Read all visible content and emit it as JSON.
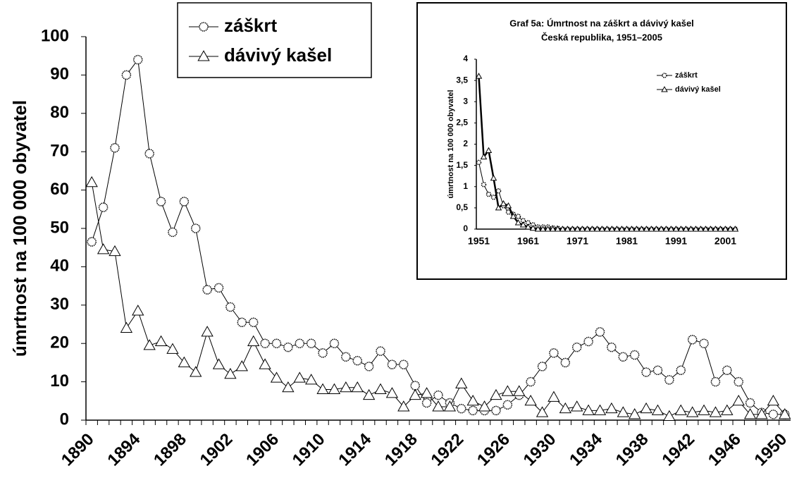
{
  "chart_data": [
    {
      "type": "line",
      "ylabel": "úmrtnost na 100 000 obyvatel",
      "categories": [
        "1890",
        null,
        null,
        null,
        "1894",
        null,
        null,
        null,
        "1898",
        null,
        null,
        null,
        "1902",
        null,
        null,
        null,
        "1906",
        null,
        null,
        null,
        "1910",
        null,
        null,
        null,
        "1914",
        null,
        null,
        null,
        "1918",
        null,
        null,
        null,
        "1922",
        null,
        null,
        null,
        "1926",
        null,
        null,
        null,
        "1930",
        null,
        null,
        null,
        "1934",
        null,
        null,
        null,
        "1938",
        null,
        null,
        null,
        "1942",
        null,
        null,
        null,
        "1946",
        null,
        null,
        null,
        "1950"
      ],
      "series": [
        {
          "name": "záškrt",
          "color": "#000000",
          "marker": "circle",
          "values": [
            46.5,
            55.5,
            71,
            90,
            94,
            69.5,
            57,
            49,
            57,
            50,
            34,
            34.5,
            29.5,
            25.5,
            25.5,
            20,
            20,
            19,
            20,
            20,
            17.5,
            20,
            16.5,
            15.5,
            14,
            18,
            14.5,
            14.5,
            9,
            4.5,
            6.5,
            4.5,
            3,
            2.5,
            2.5,
            2.5,
            4,
            6.5,
            10,
            14,
            17.5,
            15,
            19,
            20.5,
            23,
            19,
            16.5,
            17,
            12.5,
            13,
            10.5,
            13,
            21,
            20,
            10,
            13,
            10,
            4.5,
            2,
            1.5,
            1.5
          ]
        },
        {
          "name": "dávivý kašel",
          "color": "#000000",
          "marker": "triangle",
          "values": [
            62,
            44.5,
            44,
            24,
            28.5,
            19.5,
            20.5,
            18.5,
            15,
            12.5,
            23,
            14.5,
            12,
            14,
            20.5,
            14.5,
            11,
            8.5,
            11,
            10.5,
            8,
            8,
            8.5,
            8.5,
            6.5,
            8,
            7,
            3.5,
            6.5,
            7,
            3.5,
            3.5,
            9.5,
            5,
            3.5,
            6.5,
            7.5,
            7.5,
            5,
            2,
            6,
            3,
            3.5,
            2.5,
            2.5,
            3,
            2,
            1.5,
            3,
            2.5,
            1,
            2.5,
            2,
            2.5,
            2,
            2.5,
            5,
            1.5,
            1.5,
            5,
            1.5
          ]
        }
      ],
      "ylim": [
        0,
        100
      ],
      "yticks": [
        0,
        10,
        20,
        30,
        40,
        50,
        60,
        70,
        80,
        90,
        100
      ]
    },
    {
      "type": "line",
      "title": "Graf 5a: Úmrtnost na záškrt a dávivý kašel",
      "subtitle": "Česká republika, 1951–2005",
      "ylabel": "úmrtnost na 100 000 obyvatel",
      "categories": [
        "1951",
        null,
        null,
        null,
        null,
        null,
        null,
        null,
        null,
        null,
        "1961",
        null,
        null,
        null,
        null,
        null,
        null,
        null,
        null,
        null,
        "1971",
        null,
        null,
        null,
        null,
        null,
        null,
        null,
        null,
        null,
        "1981",
        null,
        null,
        null,
        null,
        null,
        null,
        null,
        null,
        null,
        "1991",
        null,
        null,
        null,
        null,
        null,
        null,
        null,
        null,
        null,
        "2001",
        null,
        null
      ],
      "series": [
        {
          "name": "záškrt",
          "color": "#000000",
          "marker": "circle",
          "values": [
            1.57,
            1.05,
            0.82,
            0.75,
            0.9,
            0.55,
            0.4,
            0.35,
            0.3,
            0.2,
            0.15,
            0.1,
            0.05,
            0.05,
            0.05,
            0.03,
            0.02,
            0,
            0,
            0,
            0,
            0,
            0,
            0,
            0,
            0,
            0,
            0,
            0,
            0,
            0,
            0,
            0,
            0,
            0,
            0,
            0,
            0,
            0,
            0,
            0,
            0,
            0,
            0,
            0,
            0,
            0,
            0,
            0,
            0,
            0,
            0,
            0
          ]
        },
        {
          "name": "dávivý kašel",
          "color": "#000000",
          "marker": "triangle",
          "values": [
            3.6,
            1.7,
            1.85,
            1.2,
            0.5,
            0.6,
            0.55,
            0.3,
            0.15,
            0.1,
            0.05,
            0.02,
            0,
            0,
            0,
            0,
            0,
            0,
            0,
            0,
            0,
            0,
            0,
            0,
            0,
            0,
            0,
            0,
            0,
            0,
            0,
            0,
            0,
            0,
            0,
            0,
            0,
            0,
            0,
            0,
            0,
            0,
            0,
            0,
            0,
            0,
            0,
            0,
            0,
            0,
            0,
            0,
            0
          ]
        }
      ],
      "ylim": [
        0,
        4
      ],
      "yticks": [
        0,
        {
          "value": 0.5,
          "label": "0,5"
        },
        1,
        {
          "value": 1.5,
          "label": "1,5"
        },
        2,
        {
          "value": 2.5,
          "label": "2,5"
        },
        3,
        {
          "value": 3.5,
          "label": "3,5"
        },
        4
      ]
    }
  ]
}
